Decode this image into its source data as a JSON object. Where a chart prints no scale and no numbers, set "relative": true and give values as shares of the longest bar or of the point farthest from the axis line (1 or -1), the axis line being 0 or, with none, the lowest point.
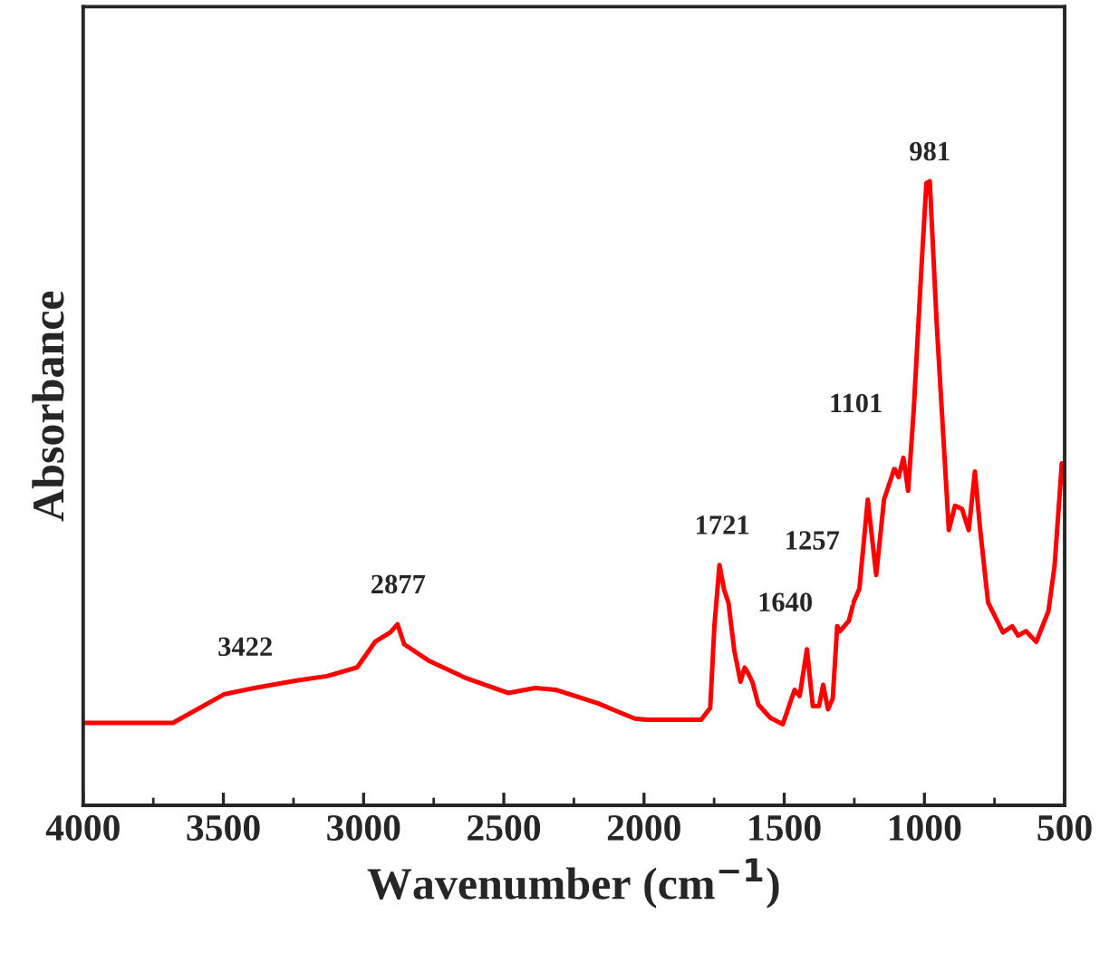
{
  "chart_data": {
    "type": "line",
    "xlabel": "Wavenumber (cm$^{−1}$)",
    "ylabel": "Absorbance",
    "relative": true,
    "xlim": [
      4000,
      500
    ],
    "xticks": [
      4000,
      3500,
      3000,
      2500,
      2000,
      1500,
      1000,
      500
    ],
    "series": [
      {
        "color": "#ff0000",
        "x": [
          3997,
          3680,
          3497,
          3390,
          3239,
          3131,
          3023,
          2959,
          2905,
          2879,
          2855,
          2765,
          2636,
          2485,
          2388,
          2313,
          2162,
          2098,
          2033,
          1990,
          1968,
          1796,
          1764,
          1749,
          1731,
          1714,
          1699,
          1678,
          1656,
          1641,
          1628,
          1613,
          1592,
          1549,
          1505,
          1463,
          1445,
          1419,
          1398,
          1376,
          1361,
          1344,
          1327,
          1311,
          1301,
          1269,
          1253,
          1232,
          1202,
          1172,
          1144,
          1107,
          1092,
          1075,
          1058,
          1038,
          1010,
          993,
          981,
          956,
          913,
          891,
          866,
          842,
          820,
          801,
          773,
          720,
          687,
          666,
          638,
          601,
          558,
          536,
          510
        ],
        "values": [
          0.132,
          0.132,
          0.178,
          0.188,
          0.2,
          0.207,
          0.221,
          0.262,
          0.277,
          0.29,
          0.258,
          0.231,
          0.204,
          0.18,
          0.188,
          0.185,
          0.163,
          0.151,
          0.139,
          0.137,
          0.137,
          0.137,
          0.156,
          0.287,
          0.385,
          0.345,
          0.325,
          0.248,
          0.198,
          0.221,
          0.211,
          0.197,
          0.161,
          0.14,
          0.13,
          0.185,
          0.175,
          0.25,
          0.159,
          0.159,
          0.193,
          0.154,
          0.171,
          0.287,
          0.279,
          0.296,
          0.325,
          0.347,
          0.49,
          0.369,
          0.49,
          0.54,
          0.526,
          0.557,
          0.504,
          0.635,
          0.867,
          0.997,
          1.0,
          0.77,
          0.441,
          0.48,
          0.475,
          0.441,
          0.535,
          0.441,
          0.325,
          0.277,
          0.287,
          0.272,
          0.279,
          0.262,
          0.311,
          0.383,
          0.548
        ]
      }
    ],
    "annotations": [
      {
        "text": "3422",
        "x": 3422,
        "y": 0.19
      },
      {
        "text": "2877",
        "x": 2877,
        "y": 0.29
      },
      {
        "text": "1721",
        "x": 1721,
        "y": 0.385
      },
      {
        "text": "1640",
        "x": 1640,
        "y": 0.221
      },
      {
        "text": "1257",
        "x": 1257,
        "y": 0.32
      },
      {
        "text": "1101",
        "x": 1101,
        "y": 0.54
      },
      {
        "text": "981",
        "x": 981,
        "y": 1.0
      }
    ]
  }
}
